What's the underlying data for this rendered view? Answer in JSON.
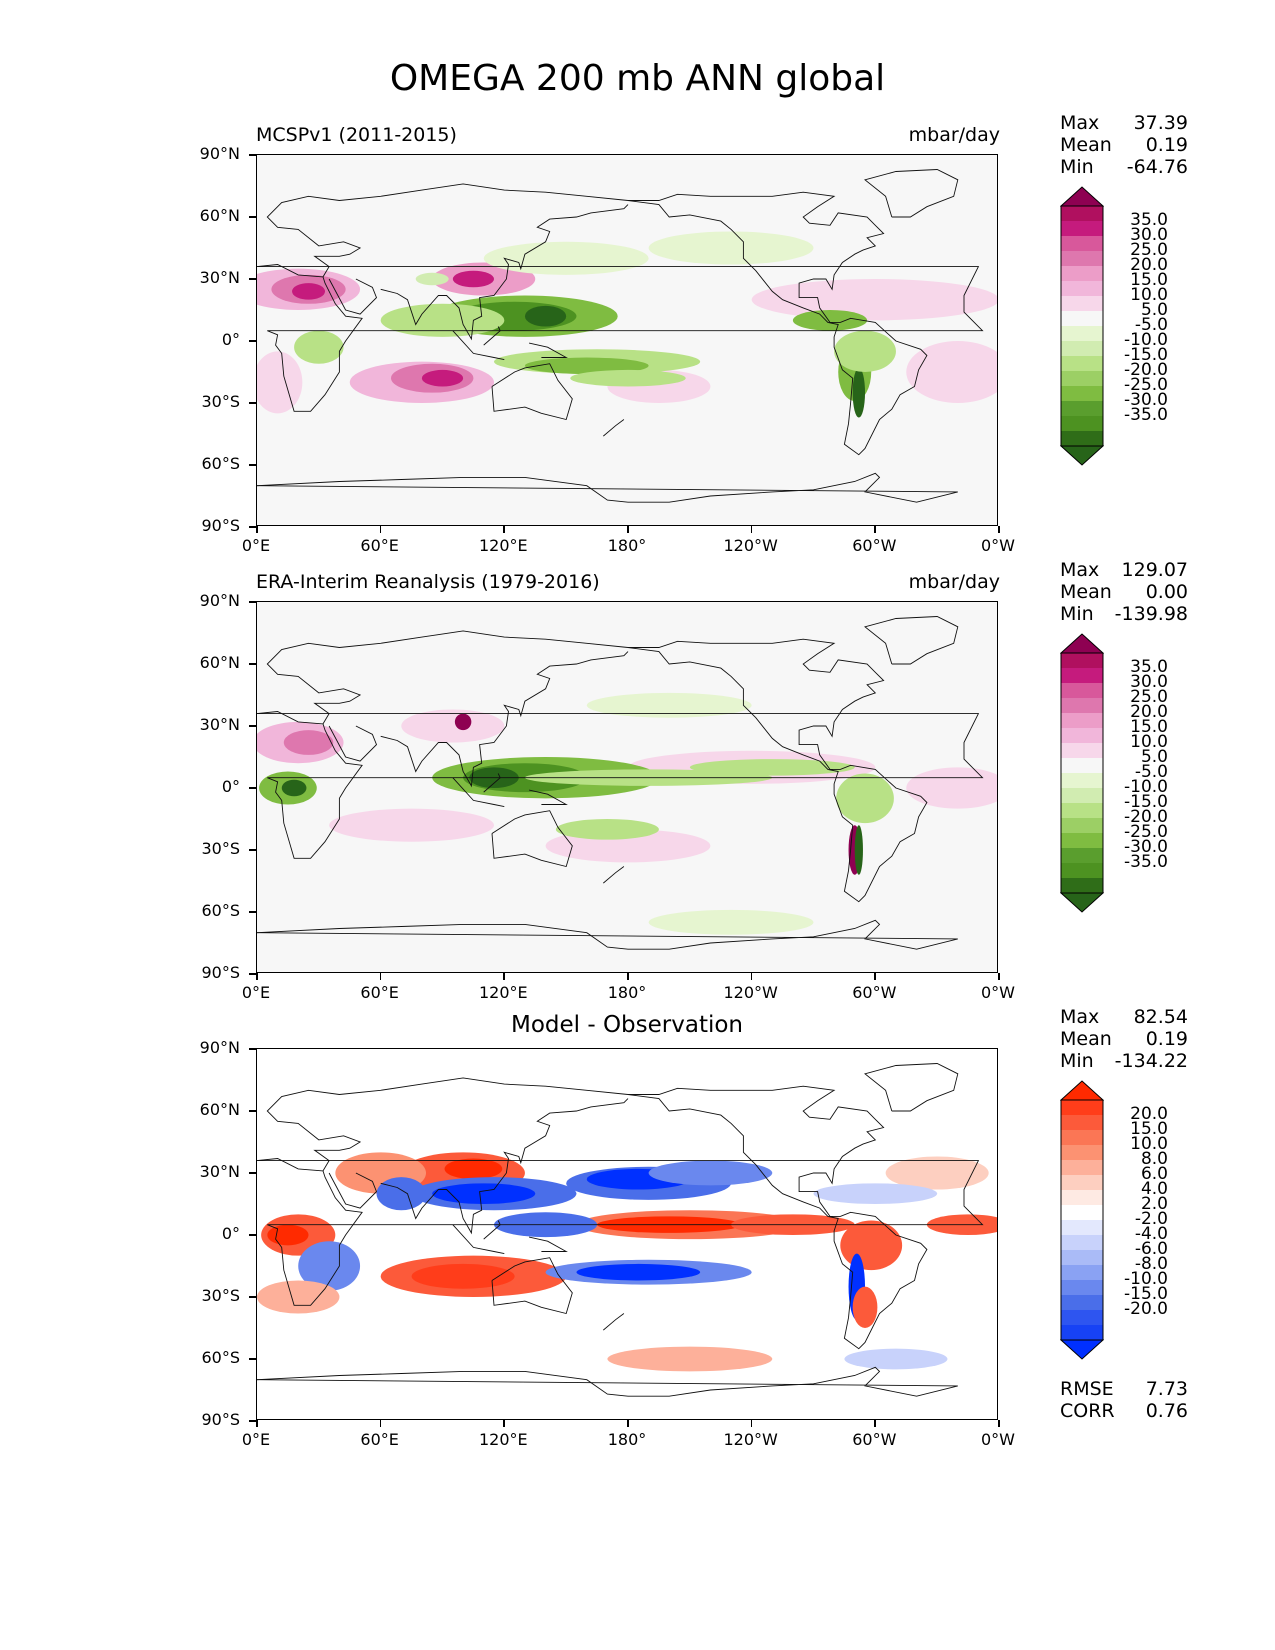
{
  "title": "OMEGA 200 mb ANN global",
  "axes": {
    "yticks": [
      "90°N",
      "60°N",
      "30°N",
      "0°",
      "30°S",
      "60°S",
      "90°S"
    ],
    "xticks": [
      "0°E",
      "60°E",
      "120°E",
      "180°",
      "120°W",
      "60°W",
      "0°W"
    ]
  },
  "panels": [
    {
      "left_title": "MCSPv1 (2011-2015)",
      "right_title": "mbar/day",
      "center_title": "",
      "stats": [
        {
          "label": "Max",
          "value": "37.39"
        },
        {
          "label": "Mean",
          "value": "0.19"
        },
        {
          "label": "Min",
          "value": "-64.76"
        }
      ],
      "bottom_stats": [],
      "colorbar": {
        "labels": [
          "35.0",
          "30.0",
          "25.0",
          "20.0",
          "15.0",
          "10.0",
          "5.0",
          "-5.0",
          "-10.0",
          "-15.0",
          "-20.0",
          "-25.0",
          "-30.0",
          "-35.0"
        ],
        "colors": [
          "#8e0152",
          "#b0105f",
          "#c51b7d",
          "#d8589b",
          "#de77ae",
          "#ec9dc8",
          "#f1b6da",
          "#f7d7ea",
          "#f7f7f7",
          "#e6f5d0",
          "#d1ecb1",
          "#b8e186",
          "#9ccf65",
          "#7fbc41",
          "#5a9e2e",
          "#4d9221",
          "#2f6d18",
          "#276419"
        ]
      }
    },
    {
      "left_title": "ERA-Interim Reanalysis (1979-2016)",
      "right_title": "mbar/day",
      "center_title": "",
      "stats": [
        {
          "label": "Max",
          "value": "129.07"
        },
        {
          "label": "Mean",
          "value": "0.00"
        },
        {
          "label": "Min",
          "value": "-139.98"
        }
      ],
      "bottom_stats": [],
      "colorbar": {
        "labels": [
          "35.0",
          "30.0",
          "25.0",
          "20.0",
          "15.0",
          "10.0",
          "5.0",
          "-5.0",
          "-10.0",
          "-15.0",
          "-20.0",
          "-25.0",
          "-30.0",
          "-35.0"
        ],
        "colors": [
          "#8e0152",
          "#b0105f",
          "#c51b7d",
          "#d8589b",
          "#de77ae",
          "#ec9dc8",
          "#f1b6da",
          "#f7d7ea",
          "#f7f7f7",
          "#e6f5d0",
          "#d1ecb1",
          "#b8e186",
          "#9ccf65",
          "#7fbc41",
          "#5a9e2e",
          "#4d9221",
          "#2f6d18",
          "#276419"
        ]
      }
    },
    {
      "left_title": "",
      "right_title": "",
      "center_title": "Model - Observation",
      "stats": [
        {
          "label": "Max",
          "value": "82.54"
        },
        {
          "label": "Mean",
          "value": "0.19"
        },
        {
          "label": "Min",
          "value": "-134.22"
        }
      ],
      "bottom_stats": [
        {
          "label": "RMSE",
          "value": "7.73"
        },
        {
          "label": "CORR",
          "value": "0.76"
        }
      ],
      "colorbar": {
        "labels": [
          "20.0",
          "15.0",
          "10.0",
          "8.0",
          "6.0",
          "4.0",
          "2.0",
          "-2.0",
          "-4.0",
          "-6.0",
          "-8.0",
          "-10.0",
          "-15.0",
          "-20.0"
        ],
        "colors": [
          "#ff2a00",
          "#ff3d1a",
          "#fc5a3a",
          "#fb7655",
          "#fc9272",
          "#fdb09a",
          "#fdcfc0",
          "#feeae3",
          "#ffffff",
          "#e3e8fd",
          "#c8d2fb",
          "#aabbf7",
          "#8aa2f3",
          "#6a88ee",
          "#4a6ee9",
          "#2e55f0",
          "#1742f5",
          "#0030ff"
        ]
      }
    }
  ],
  "chart_data": [
    {
      "type": "heatmap",
      "title": "MCSPv1 (2011-2015)",
      "units": "mbar/day",
      "lat_range": [
        -90,
        90
      ],
      "lon_range": [
        0,
        360
      ],
      "levels": [
        -35,
        -30,
        -25,
        -20,
        -15,
        -10,
        -5,
        5,
        10,
        15,
        20,
        25,
        30,
        35
      ],
      "stats": {
        "max": 37.39,
        "mean": 0.19,
        "min": -64.76
      }
    },
    {
      "type": "heatmap",
      "title": "ERA-Interim Reanalysis (1979-2016)",
      "units": "mbar/day",
      "lat_range": [
        -90,
        90
      ],
      "lon_range": [
        0,
        360
      ],
      "levels": [
        -35,
        -30,
        -25,
        -20,
        -15,
        -10,
        -5,
        5,
        10,
        15,
        20,
        25,
        30,
        35
      ],
      "stats": {
        "max": 129.07,
        "mean": 0.0,
        "min": -139.98
      }
    },
    {
      "type": "heatmap",
      "title": "Model - Observation",
      "lat_range": [
        -90,
        90
      ],
      "lon_range": [
        0,
        360
      ],
      "levels": [
        -20,
        -15,
        -10,
        -8,
        -6,
        -4,
        -2,
        2,
        4,
        6,
        8,
        10,
        15,
        20
      ],
      "stats": {
        "max": 82.54,
        "mean": 0.19,
        "min": -134.22,
        "rmse": 7.73,
        "corr": 0.76
      }
    }
  ]
}
